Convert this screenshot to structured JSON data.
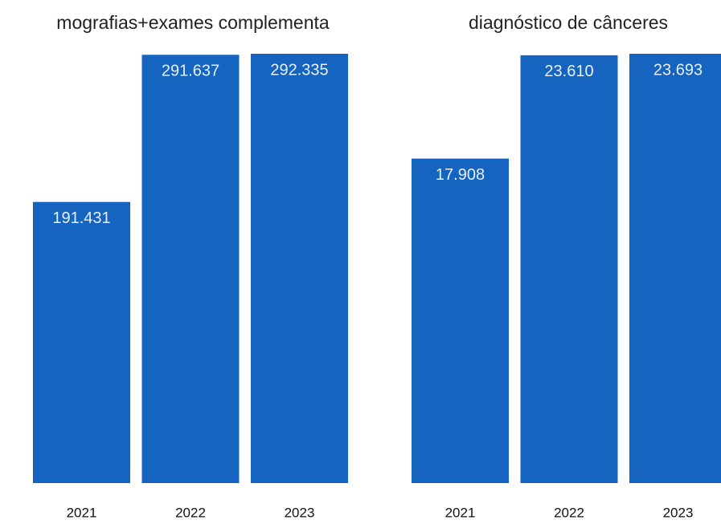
{
  "chart_data": [
    {
      "type": "bar",
      "title": "mografias+exames complementa",
      "categories": [
        "2021",
        "2022",
        "2023"
      ],
      "values": [
        191431,
        291637,
        292335
      ],
      "value_labels": [
        "191.431",
        "291.637",
        "292.335"
      ],
      "color": "#1565c0"
    },
    {
      "type": "bar",
      "title": "diagnóstico de cânceres",
      "categories": [
        "2021",
        "2022",
        "2023"
      ],
      "values": [
        17908,
        23610,
        23693
      ],
      "value_labels": [
        "17.908",
        "23.610",
        "23.693"
      ],
      "color": "#1565c0"
    }
  ]
}
